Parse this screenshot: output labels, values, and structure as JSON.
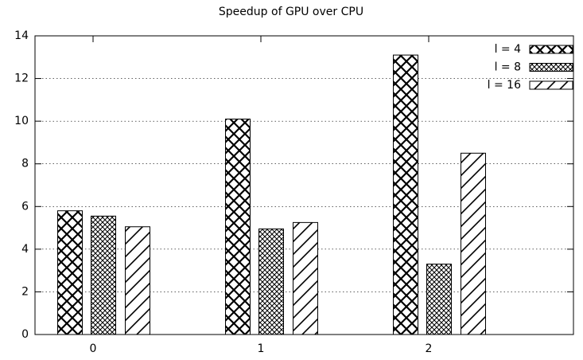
{
  "chart_data": {
    "type": "bar",
    "title": "Speedup of GPU over CPU",
    "categories": [
      "0",
      "1",
      "2"
    ],
    "series": [
      {
        "name": "l = 4",
        "color": "#000000",
        "values": [
          5.8,
          10.1,
          13.1
        ]
      },
      {
        "name": "l = 8",
        "color": "#000000",
        "values": [
          5.55,
          4.95,
          3.3
        ]
      },
      {
        "name": "l = 16",
        "color": "#000000",
        "values": [
          5.05,
          5.25,
          8.5
        ]
      }
    ],
    "ylim": [
      0,
      14
    ],
    "yticks": [
      0,
      2,
      4,
      6,
      8,
      10,
      12,
      14
    ],
    "grid": true,
    "legend": "top-right"
  }
}
